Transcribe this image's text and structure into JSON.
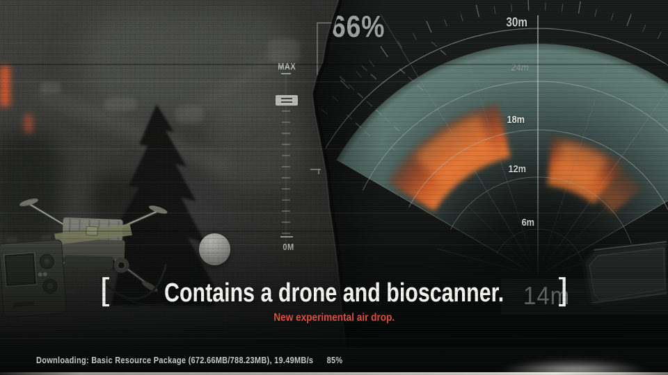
{
  "hud": {
    "scan_percent": "66%",
    "gauge": {
      "max_label": "MAX",
      "zero_label": "0M"
    },
    "radar": {
      "ring_labels": [
        "30m",
        "24m",
        "18m",
        "12m",
        "6m"
      ],
      "distance_readout": "14m"
    }
  },
  "caption": {
    "bracket_left": "[",
    "title": "Contains a drone and bioscanner.",
    "bracket_right": "]",
    "subtitle": "New experimental air drop."
  },
  "status_bar": {
    "download_text": "Downloading: Basic Resource Package (672.66MB/788.23MB), 19.49MB/s",
    "percent": "85%"
  },
  "icons": {
    "gauge_handle_icon": "equals-slider"
  },
  "colors": {
    "accent_orange": "#de5138",
    "detection_orange": "#e06a2e",
    "scan_teal": "#86b0a6",
    "caption_white": "#f2f3f1"
  }
}
